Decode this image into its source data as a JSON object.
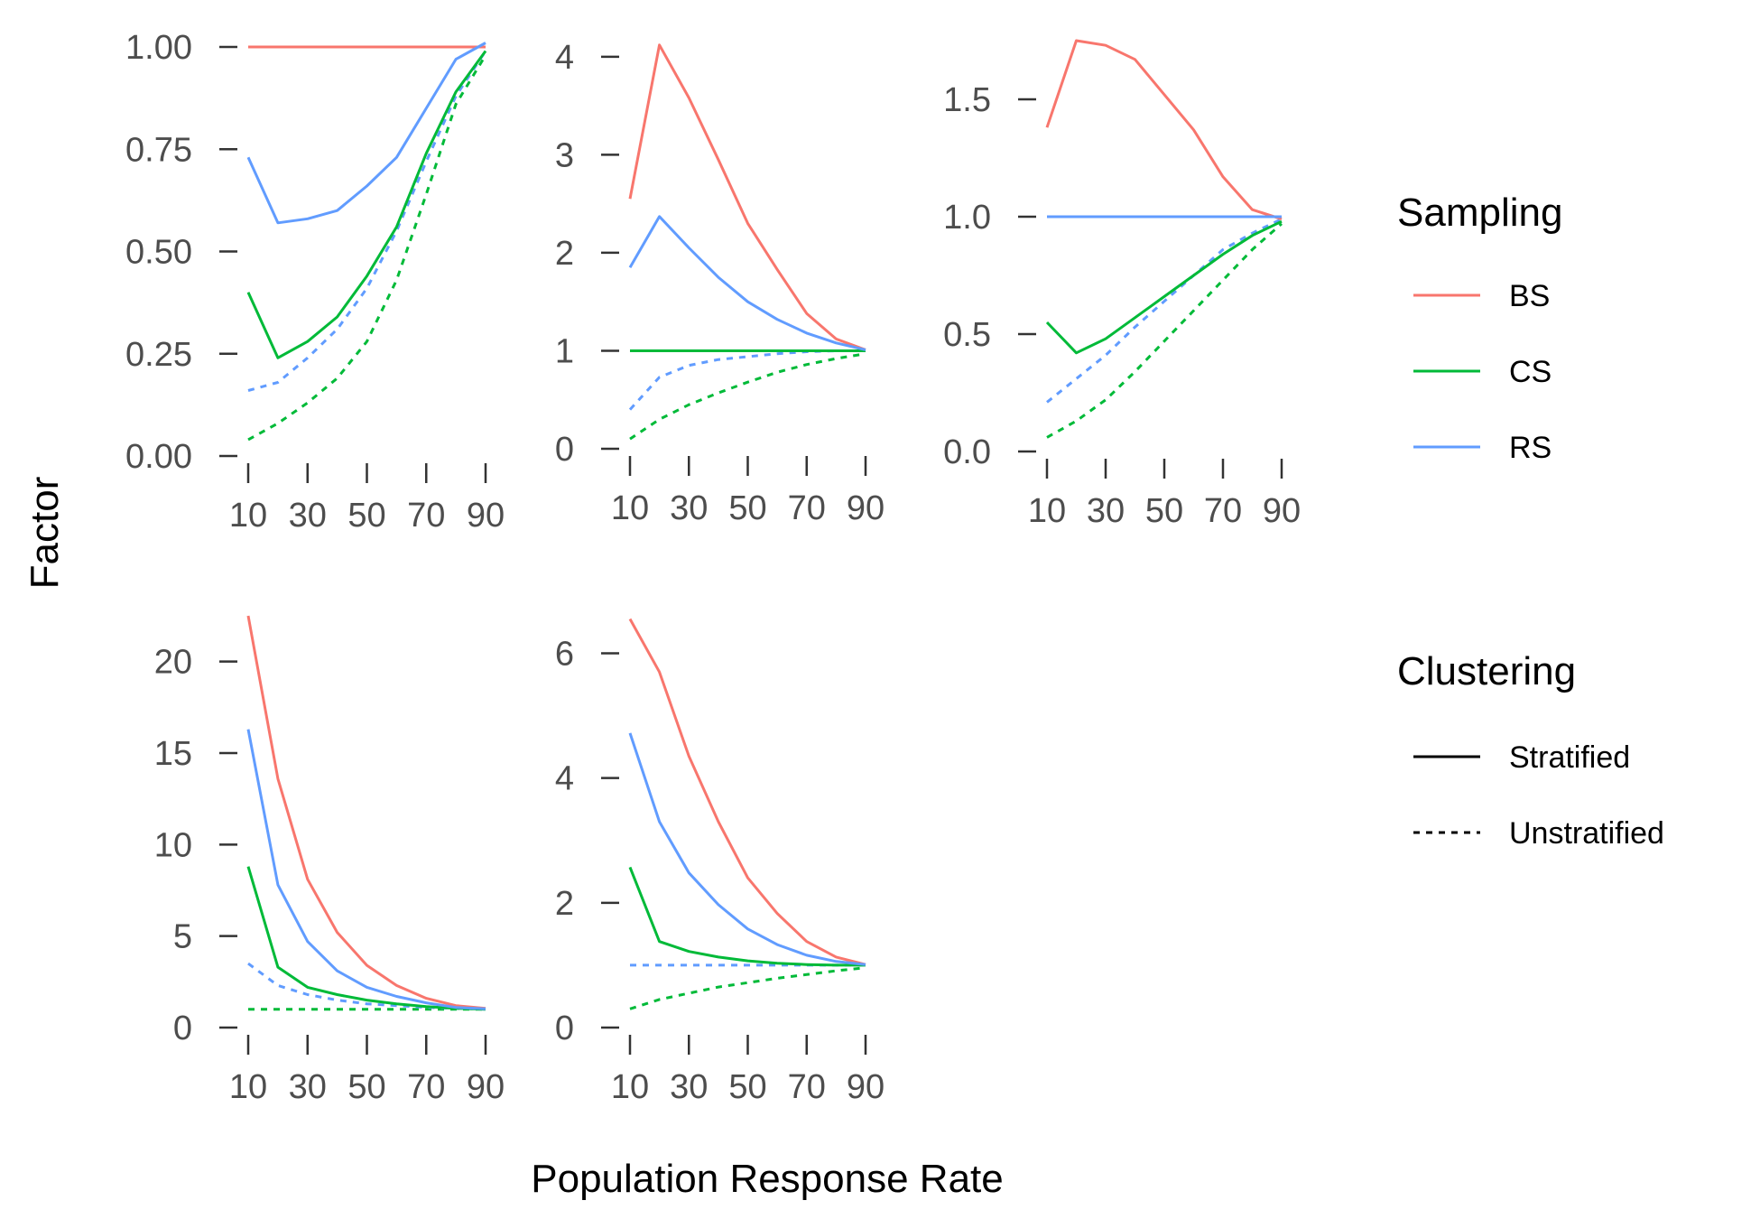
{
  "figure": {
    "xlabel": "Population Response Rate",
    "ylabel": "Factor"
  },
  "legend": {
    "sampling_title": "Sampling",
    "sampling": [
      {
        "label": "BS",
        "color": "#F8766D"
      },
      {
        "label": "CS",
        "color": "#00BA38"
      },
      {
        "label": "RS",
        "color": "#619CFF"
      }
    ],
    "clustering_title": "Clustering",
    "clustering": [
      {
        "label": "Stratified",
        "linetype": "solid"
      },
      {
        "label": "Unstratified",
        "linetype": "dashed"
      }
    ]
  },
  "chart_data": [
    {
      "type": "line",
      "panel": 1,
      "xlabel": "Population Response Rate",
      "ylabel": "Factor",
      "x": [
        10,
        20,
        30,
        40,
        50,
        60,
        70,
        80,
        90
      ],
      "xticks": [
        10,
        30,
        50,
        70,
        90
      ],
      "ylim": [
        0,
        1.0
      ],
      "yticks": [
        0,
        0.25,
        0.5,
        0.75,
        1.0
      ],
      "ytick_labels": [
        "0.00",
        "0.25",
        "0.50",
        "0.75",
        "1.00"
      ],
      "series": [
        {
          "sampling": "BS",
          "clustering": "Stratified",
          "values": [
            1,
            1,
            1,
            1,
            1,
            1,
            1,
            1,
            1
          ]
        },
        {
          "sampling": "CS",
          "clustering": "Stratified",
          "values": [
            0.4,
            0.24,
            0.28,
            0.34,
            0.44,
            0.56,
            0.74,
            0.89,
            0.99
          ]
        },
        {
          "sampling": "RS",
          "clustering": "Stratified",
          "values": [
            0.73,
            0.57,
            0.58,
            0.6,
            0.66,
            0.73,
            0.85,
            0.97,
            1.01
          ]
        },
        {
          "sampling": "CS",
          "clustering": "Unstratified",
          "values": [
            0.04,
            0.08,
            0.13,
            0.19,
            0.28,
            0.43,
            0.64,
            0.86,
            0.98
          ]
        },
        {
          "sampling": "RS",
          "clustering": "Unstratified",
          "values": [
            0.16,
            0.18,
            0.24,
            0.31,
            0.41,
            0.55,
            0.72,
            0.88,
            0.99
          ]
        }
      ]
    },
    {
      "type": "line",
      "panel": 2,
      "x": [
        10,
        20,
        30,
        40,
        50,
        60,
        70,
        80,
        90
      ],
      "xticks": [
        10,
        30,
        50,
        70,
        90
      ],
      "ylim": [
        0,
        4.1
      ],
      "yticks": [
        0,
        1,
        2,
        3,
        4
      ],
      "ytick_labels": [
        "0",
        "1",
        "2",
        "3",
        "4"
      ],
      "series": [
        {
          "sampling": "BS",
          "clustering": "Stratified",
          "values": [
            2.55,
            4.12,
            3.58,
            2.95,
            2.3,
            1.83,
            1.38,
            1.12,
            1.01
          ]
        },
        {
          "sampling": "CS",
          "clustering": "Stratified",
          "values": [
            1,
            1,
            1,
            1,
            1,
            1,
            1,
            1,
            1
          ]
        },
        {
          "sampling": "RS",
          "clustering": "Stratified",
          "values": [
            1.85,
            2.37,
            2.05,
            1.75,
            1.5,
            1.32,
            1.18,
            1.08,
            1.01
          ]
        },
        {
          "sampling": "CS",
          "clustering": "Unstratified",
          "values": [
            0.1,
            0.3,
            0.45,
            0.57,
            0.68,
            0.78,
            0.86,
            0.92,
            0.97
          ]
        },
        {
          "sampling": "RS",
          "clustering": "Unstratified",
          "values": [
            0.4,
            0.73,
            0.85,
            0.91,
            0.94,
            0.97,
            0.99,
            1.0,
            1.0
          ]
        }
      ]
    },
    {
      "type": "line",
      "panel": 3,
      "x": [
        10,
        20,
        30,
        40,
        50,
        60,
        70,
        80,
        90
      ],
      "xticks": [
        10,
        30,
        50,
        70,
        90
      ],
      "ylim": [
        0,
        1.75
      ],
      "yticks": [
        0,
        0.5,
        1.0,
        1.5
      ],
      "ytick_labels": [
        "0.0",
        "0.5",
        "1.0",
        "1.5"
      ],
      "series": [
        {
          "sampling": "BS",
          "clustering": "Stratified",
          "values": [
            1.38,
            1.75,
            1.73,
            1.67,
            1.52,
            1.37,
            1.17,
            1.03,
            0.99
          ]
        },
        {
          "sampling": "CS",
          "clustering": "Stratified",
          "values": [
            0.55,
            0.42,
            0.48,
            0.57,
            0.66,
            0.75,
            0.84,
            0.92,
            0.98
          ]
        },
        {
          "sampling": "RS",
          "clustering": "Stratified",
          "values": [
            1,
            1,
            1,
            1,
            1,
            1,
            1,
            1,
            1
          ]
        },
        {
          "sampling": "CS",
          "clustering": "Unstratified",
          "values": [
            0.06,
            0.13,
            0.22,
            0.34,
            0.47,
            0.6,
            0.73,
            0.86,
            0.97
          ]
        },
        {
          "sampling": "RS",
          "clustering": "Unstratified",
          "values": [
            0.21,
            0.31,
            0.41,
            0.53,
            0.64,
            0.75,
            0.86,
            0.93,
            0.99
          ]
        }
      ]
    },
    {
      "type": "line",
      "panel": 4,
      "x": [
        10,
        20,
        30,
        40,
        50,
        60,
        70,
        80,
        90
      ],
      "xticks": [
        10,
        30,
        50,
        70,
        90
      ],
      "ylim": [
        0,
        22.5
      ],
      "yticks": [
        0,
        5,
        10,
        15,
        20
      ],
      "ytick_labels": [
        "0",
        "5",
        "10",
        "15",
        "20"
      ],
      "series": [
        {
          "sampling": "BS",
          "clustering": "Stratified",
          "values": [
            22.5,
            13.6,
            8.1,
            5.2,
            3.4,
            2.3,
            1.6,
            1.2,
            1.05
          ]
        },
        {
          "sampling": "CS",
          "clustering": "Stratified",
          "values": [
            8.8,
            3.3,
            2.2,
            1.8,
            1.5,
            1.3,
            1.15,
            1.05,
            1.0
          ]
        },
        {
          "sampling": "RS",
          "clustering": "Stratified",
          "values": [
            16.3,
            7.8,
            4.7,
            3.1,
            2.2,
            1.7,
            1.35,
            1.1,
            1.02
          ]
        },
        {
          "sampling": "CS",
          "clustering": "Unstratified",
          "values": [
            1,
            1,
            1,
            1,
            1,
            1,
            1,
            1,
            1
          ]
        },
        {
          "sampling": "RS",
          "clustering": "Unstratified",
          "values": [
            3.5,
            2.3,
            1.8,
            1.5,
            1.3,
            1.2,
            1.1,
            1.05,
            1.0
          ]
        }
      ]
    },
    {
      "type": "line",
      "panel": 5,
      "x": [
        10,
        20,
        30,
        40,
        50,
        60,
        70,
        80,
        90
      ],
      "xticks": [
        10,
        30,
        50,
        70,
        90
      ],
      "ylim": [
        0,
        6.6
      ],
      "yticks": [
        0,
        2,
        4,
        6
      ],
      "ytick_labels": [
        "0",
        "2",
        "4",
        "6"
      ],
      "series": [
        {
          "sampling": "BS",
          "clustering": "Stratified",
          "values": [
            6.55,
            5.7,
            4.35,
            3.3,
            2.4,
            1.83,
            1.38,
            1.13,
            1.01
          ]
        },
        {
          "sampling": "CS",
          "clustering": "Stratified",
          "values": [
            2.57,
            1.38,
            1.22,
            1.13,
            1.07,
            1.03,
            1.01,
            1.0,
            1.0
          ]
        },
        {
          "sampling": "RS",
          "clustering": "Stratified",
          "values": [
            4.72,
            3.3,
            2.48,
            1.97,
            1.58,
            1.33,
            1.16,
            1.06,
            1.01
          ]
        },
        {
          "sampling": "CS",
          "clustering": "Unstratified",
          "values": [
            0.3,
            0.45,
            0.55,
            0.65,
            0.72,
            0.79,
            0.85,
            0.91,
            0.96
          ]
        },
        {
          "sampling": "RS",
          "clustering": "Unstratified",
          "values": [
            1,
            1,
            1,
            1,
            1,
            1,
            1,
            1,
            1
          ]
        }
      ]
    }
  ]
}
